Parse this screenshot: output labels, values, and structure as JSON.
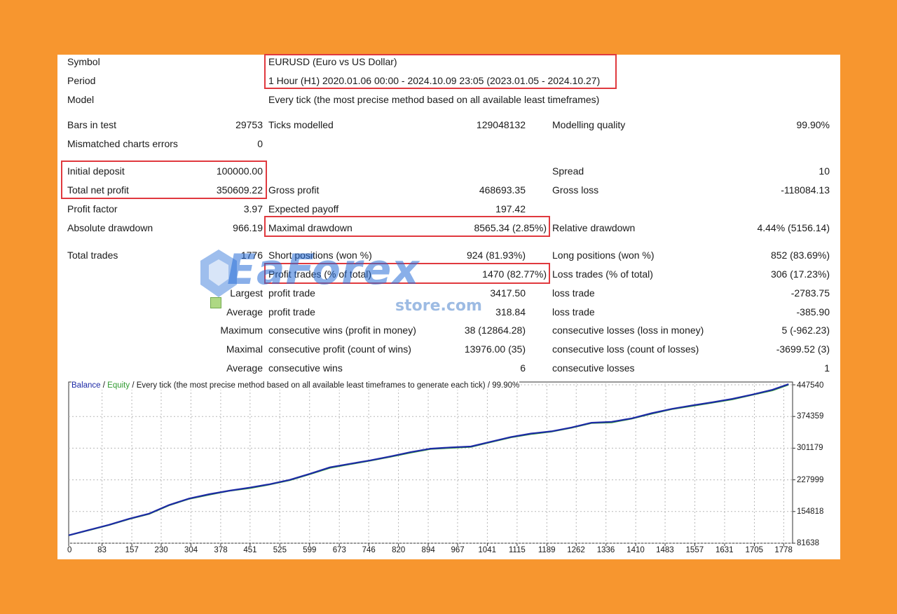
{
  "header": {
    "symbol_label": "Symbol",
    "symbol_value": "EURUSD (Euro vs US Dollar)",
    "period_label": "Period",
    "period_value": "1 Hour (H1) 2020.01.06 00:00 - 2024.10.09 23:05 (2023.01.05 - 2024.10.27)",
    "model_label": "Model",
    "model_value": "Every tick (the most precise method based on all available least timeframes)"
  },
  "stats": {
    "bars_label": "Bars in test",
    "bars_value": "29753",
    "ticks_label": "Ticks modelled",
    "ticks_value": "129048132",
    "quality_label": "Modelling quality",
    "quality_value": "99.90%",
    "mismatch_label": "Mismatched charts errors",
    "mismatch_value": "0",
    "initial_label": "Initial deposit",
    "initial_value": "100000.00",
    "spread_label": "Spread",
    "spread_value": "10",
    "netprofit_label": "Total net profit",
    "netprofit_value": "350609.22",
    "grossprofit_label": "Gross profit",
    "grossprofit_value": "468693.35",
    "grossloss_label": "Gross loss",
    "grossloss_value": "-118084.13",
    "pf_label": "Profit factor",
    "pf_value": "3.97",
    "payoff_label": "Expected payoff",
    "payoff_value": "197.42",
    "absdd_label": "Absolute drawdown",
    "absdd_value": "966.19",
    "maxdd_label": "Maximal drawdown",
    "maxdd_value": "8565.34 (2.85%)",
    "reldd_label": "Relative drawdown",
    "reldd_value": "4.44% (5156.14)",
    "trades_label": "Total trades",
    "trades_value": "1776",
    "short_label": "Short positions (won %)",
    "short_value": "924 (81.93%)",
    "long_label": "Long positions (won %)",
    "long_value": "852 (83.69%)",
    "profit_trades_label": "Profit trades (% of total)",
    "profit_trades_value": "1470 (82.77%)",
    "loss_trades_label": "Loss trades (% of total)",
    "loss_trades_value": "306 (17.23%)",
    "largest_label": "Largest",
    "largest_profit_label": "profit trade",
    "largest_profit_value": "3417.50",
    "largest_loss_label": "loss trade",
    "largest_loss_value": "-2783.75",
    "average_label": "Average",
    "average_profit_label": "profit trade",
    "average_profit_value": "318.84",
    "average_loss_label": "loss trade",
    "average_loss_value": "-385.90",
    "maximum_label": "Maximum",
    "max_wins_label": "consecutive wins (profit in money)",
    "max_wins_value": "38 (12864.28)",
    "max_losses_label": "consecutive losses (loss in money)",
    "max_losses_value": "5 (-962.23)",
    "maximal_label": "Maximal",
    "maximal_profit_label": "consecutive profit (count of wins)",
    "maximal_profit_value": "13976.00 (35)",
    "maximal_loss_label": "consecutive loss (count of losses)",
    "maximal_loss_value": "-3699.52 (3)",
    "average2_label": "Average",
    "avg_wins_label": "consecutive wins",
    "avg_wins_value": "6",
    "avg_losses_label": "consecutive losses",
    "avg_losses_value": "1"
  },
  "watermark": {
    "brand": "EaForex",
    "domain": "store.com"
  },
  "colors": {
    "background": "#F7962F",
    "highlight": "#E0393E",
    "balance": "#1d2aa6",
    "equity": "#2f9a2f"
  },
  "chart_data": {
    "type": "line",
    "legend_balance": "Balance",
    "legend_sep1": " / ",
    "legend_equity": "Equity",
    "legend_rest": " / Every tick (the most precise method based on all available least timeframes to generate each tick) / 99.90%",
    "ylim": [
      81638,
      454000
    ],
    "xlim": [
      0,
      1800
    ],
    "y_ticks": [
      "447540",
      "374359",
      "301179",
      "227999",
      "154818",
      "81638"
    ],
    "x_ticks": [
      "0",
      "83",
      "157",
      "230",
      "304",
      "378",
      "451",
      "525",
      "599",
      "673",
      "746",
      "820",
      "894",
      "967",
      "1041",
      "1115",
      "1189",
      "1262",
      "1336",
      "1410",
      "1483",
      "1557",
      "1631",
      "1705",
      "1778"
    ],
    "grid": true,
    "series": [
      {
        "name": "Balance",
        "x": [
          0,
          50,
          100,
          150,
          200,
          250,
          300,
          350,
          400,
          450,
          500,
          550,
          600,
          650,
          700,
          750,
          800,
          850,
          900,
          950,
          1000,
          1050,
          1100,
          1150,
          1200,
          1250,
          1300,
          1350,
          1400,
          1450,
          1500,
          1550,
          1600,
          1650,
          1700,
          1750,
          1790
        ],
        "values": [
          100000,
          112000,
          124000,
          138000,
          150000,
          170000,
          185000,
          195000,
          203000,
          210000,
          218000,
          228000,
          242000,
          257000,
          265000,
          273000,
          282000,
          292000,
          300000,
          303000,
          305000,
          316000,
          327000,
          335000,
          340000,
          349000,
          360000,
          362000,
          370000,
          382000,
          392000,
          400000,
          407000,
          415000,
          425000,
          436000,
          449000
        ]
      },
      {
        "name": "Equity",
        "x": [
          0,
          50,
          100,
          150,
          200,
          250,
          300,
          350,
          400,
          450,
          500,
          550,
          600,
          650,
          700,
          750,
          800,
          850,
          900,
          950,
          1000,
          1050,
          1100,
          1150,
          1200,
          1250,
          1300,
          1350,
          1400,
          1450,
          1500,
          1550,
          1600,
          1650,
          1700,
          1750,
          1790
        ],
        "values": [
          99000,
          111000,
          123000,
          136500,
          148500,
          168500,
          183500,
          193000,
          202000,
          208000,
          216500,
          226500,
          240500,
          255000,
          263500,
          271500,
          280500,
          290000,
          298500,
          301000,
          303500,
          314500,
          325500,
          333000,
          338500,
          347500,
          358500,
          360000,
          368500,
          380000,
          390500,
          398000,
          405500,
          413000,
          423500,
          434000,
          447000
        ]
      }
    ]
  }
}
